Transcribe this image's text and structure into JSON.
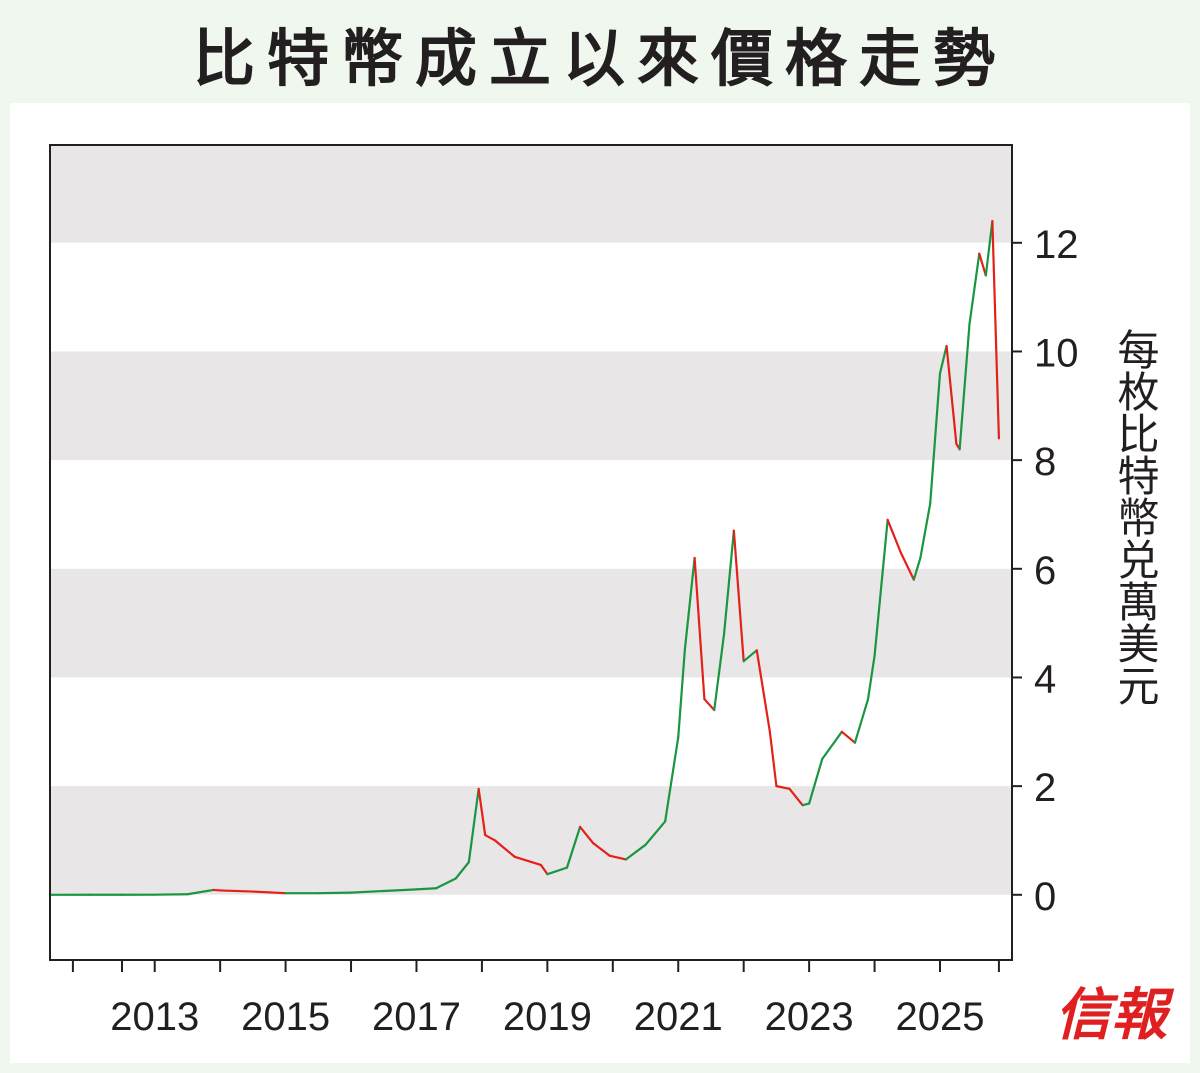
{
  "title": "比特幣成立以來價格走勢",
  "publisher_logo": "信報",
  "colors": {
    "up": "#e32119",
    "down": "#1a9641",
    "band": "#e8e6e7",
    "frame": "#231f20"
  },
  "chart_data": {
    "type": "line",
    "title": "比特幣成立以來價格走勢",
    "ylabel": "每枚比特幣兑萬美元",
    "xlabel": "",
    "y_ticks": [
      0,
      2,
      4,
      6,
      8,
      10,
      12
    ],
    "ylim": [
      -1.2,
      13.8
    ],
    "xlim": [
      2011.4,
      2026.1
    ],
    "x_tick_labels": [
      "2013",
      "2015",
      "2017",
      "2019",
      "2021",
      "2023",
      "2025"
    ],
    "x_ticks_major": [
      2013,
      2015,
      2017,
      2019,
      2021,
      2023,
      2025
    ],
    "x_ticks_minor": [
      2011.75,
      2012.5,
      2014,
      2016,
      2018,
      2020,
      2022,
      2024,
      2025.9
    ],
    "axis_position": "right",
    "grid": "alternating horizontal bands",
    "series": [
      {
        "x": [
          2011.4,
          2012.0,
          2012.5,
          2013.0,
          2013.5,
          2013.9,
          2014.0,
          2014.5,
          2015.0,
          2015.5,
          2016.0,
          2016.5,
          2017.0,
          2017.3,
          2017.6,
          2017.8,
          2017.95,
          2018.05,
          2018.2,
          2018.5,
          2018.9,
          2019.0,
          2019.3,
          2019.5,
          2019.7,
          2019.95,
          2020.2,
          2020.5,
          2020.8,
          2021.0,
          2021.1,
          2021.25,
          2021.4,
          2021.55,
          2021.7,
          2021.85,
          2022.0,
          2022.2,
          2022.4,
          2022.5,
          2022.7,
          2022.9,
          2023.0,
          2023.2,
          2023.5,
          2023.7,
          2023.9,
          2024.0,
          2024.2,
          2024.4,
          2024.6,
          2024.7,
          2024.85,
          2025.0,
          2025.1,
          2025.25,
          2025.3,
          2025.45,
          2025.6,
          2025.7,
          2025.8,
          2025.9
        ],
        "values": [
          0.0,
          0.001,
          0.001,
          0.002,
          0.01,
          0.09,
          0.08,
          0.06,
          0.03,
          0.03,
          0.04,
          0.07,
          0.1,
          0.12,
          0.3,
          0.6,
          1.95,
          1.1,
          1.0,
          0.7,
          0.55,
          0.38,
          0.5,
          1.25,
          0.95,
          0.72,
          0.65,
          0.92,
          1.35,
          2.9,
          4.5,
          6.2,
          3.6,
          3.4,
          4.8,
          6.7,
          4.3,
          4.5,
          3.0,
          2.0,
          1.95,
          1.65,
          1.68,
          2.5,
          3.0,
          2.8,
          3.6,
          4.4,
          6.9,
          6.3,
          5.8,
          6.2,
          7.2,
          9.6,
          10.1,
          8.3,
          8.2,
          10.5,
          11.8,
          11.4,
          12.4,
          8.4
        ]
      }
    ]
  }
}
